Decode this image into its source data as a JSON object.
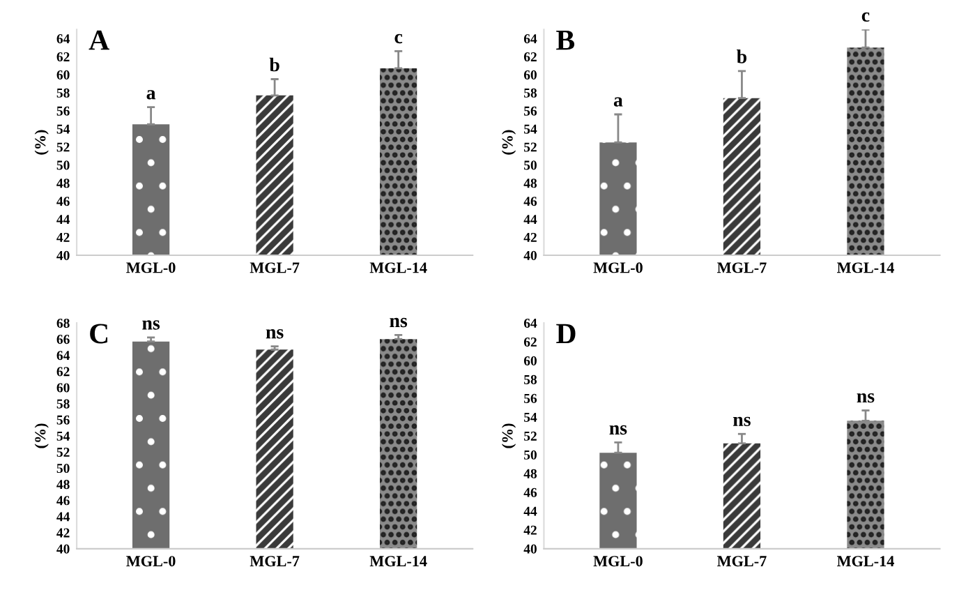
{
  "chart_data": [
    {
      "type": "bar",
      "title": "A",
      "ylabel": "(%)",
      "categories": [
        "MGL-0",
        "MGL-7",
        "MGL-14"
      ],
      "values": [
        54.5,
        57.7,
        60.7
      ],
      "errors": [
        1.9,
        1.8,
        1.9
      ],
      "colors": [
        "#6e6e6e",
        "#3a3a3a",
        "#8a8a8a"
      ],
      "ylim": [
        40,
        65
      ],
      "yticks": [
        40,
        42,
        44,
        46,
        48,
        50,
        52,
        54,
        56,
        58,
        60,
        62,
        64
      ],
      "grid": false,
      "annotations": [
        {
          "text": "a",
          "x": "MGL-0",
          "y": 56.4
        },
        {
          "text": "b",
          "x": "MGL-7",
          "y": 59.5
        },
        {
          "text": "c",
          "x": "MGL-14",
          "y": 62.6
        }
      ]
    },
    {
      "type": "bar",
      "title": "B",
      "ylabel": "(%)",
      "categories": [
        "MGL-0",
        "MGL-7",
        "MGL-14"
      ],
      "values": [
        52.5,
        57.4,
        63.0
      ],
      "errors": [
        3.1,
        3.0,
        2.0
      ],
      "colors": [
        "#6e6e6e",
        "#3a3a3a",
        "#8a8a8a"
      ],
      "ylim": [
        40,
        65
      ],
      "yticks": [
        40,
        42,
        44,
        46,
        48,
        50,
        52,
        54,
        56,
        58,
        60,
        62,
        64
      ],
      "grid": false,
      "annotations": [
        {
          "text": "a",
          "x": "MGL-0",
          "y": 55.6
        },
        {
          "text": "b",
          "x": "MGL-7",
          "y": 60.4
        },
        {
          "text": "c",
          "x": "MGL-14",
          "y": 65.0
        }
      ]
    },
    {
      "type": "bar",
      "title": "C",
      "ylabel": "(%)",
      "categories": [
        "MGL-0",
        "MGL-7",
        "MGL-14"
      ],
      "values": [
        65.7,
        64.7,
        66.0
      ],
      "errors": [
        0.5,
        0.4,
        0.5
      ],
      "colors": [
        "#6e6e6e",
        "#3a3a3a",
        "#8a8a8a"
      ],
      "ylim": [
        40,
        68
      ],
      "yticks": [
        40,
        42,
        44,
        46,
        48,
        50,
        52,
        54,
        56,
        58,
        60,
        62,
        64,
        66,
        68
      ],
      "grid": false,
      "annotations": [
        {
          "text": "ns",
          "x": "MGL-0",
          "y": 66.2
        },
        {
          "text": "ns",
          "x": "MGL-7",
          "y": 65.1
        },
        {
          "text": "ns",
          "x": "MGL-14",
          "y": 66.5
        }
      ]
    },
    {
      "type": "bar",
      "title": "D",
      "ylabel": "(%)",
      "categories": [
        "MGL-0",
        "MGL-7",
        "MGL-14"
      ],
      "values": [
        50.2,
        51.2,
        53.6
      ],
      "errors": [
        1.1,
        1.0,
        1.1
      ],
      "colors": [
        "#6e6e6e",
        "#3a3a3a",
        "#8a8a8a"
      ],
      "ylim": [
        40,
        64
      ],
      "yticks": [
        40,
        42,
        44,
        46,
        48,
        50,
        52,
        54,
        56,
        58,
        60,
        62,
        64
      ],
      "grid": false,
      "annotations": [
        {
          "text": "ns",
          "x": "MGL-0",
          "y": 51.3
        },
        {
          "text": "ns",
          "x": "MGL-7",
          "y": 52.2
        },
        {
          "text": "ns",
          "x": "MGL-14",
          "y": 54.7
        }
      ]
    }
  ]
}
